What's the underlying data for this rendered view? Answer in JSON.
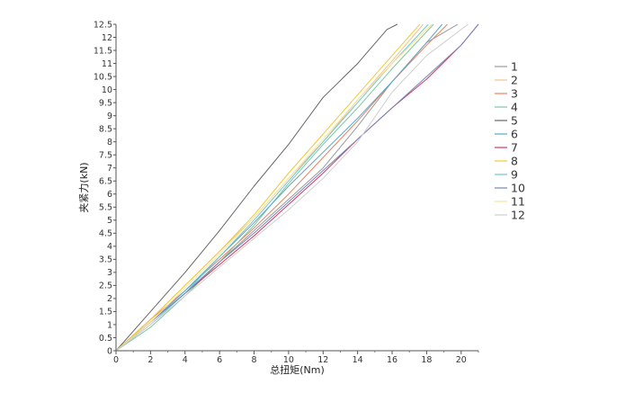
{
  "chart_data": {
    "type": "line",
    "title": "",
    "xlabel": "总扭矩(Nm)",
    "ylabel": "夹紧力(kN)",
    "xlim": [
      0,
      21
    ],
    "ylim": [
      0,
      12.5
    ],
    "x_ticks": [
      0,
      2,
      4,
      6,
      8,
      10,
      12,
      14,
      16,
      18,
      20
    ],
    "y_ticks": [
      0,
      0.5,
      1,
      1.5,
      2,
      2.5,
      3,
      3.5,
      4,
      4.5,
      5,
      5.5,
      6,
      6.5,
      7,
      7.5,
      8,
      8.5,
      9,
      9.5,
      10,
      10.5,
      11,
      11.5,
      12,
      12.5
    ],
    "x_tick_labels": [
      "0",
      "2",
      "4",
      "6",
      "8",
      "10",
      "12",
      "14",
      "16",
      "18",
      "20"
    ],
    "y_tick_labels": [
      "0",
      "0.5",
      "1",
      "1.5",
      "2",
      "2.5",
      "3",
      "3.5",
      "4",
      "4.5",
      "5",
      "5.5",
      "6",
      "6.5",
      "7",
      "7.5",
      "8",
      "8.5",
      "9",
      "9.5",
      "10",
      "10.5",
      "11",
      "11.5",
      "12",
      "12.5"
    ],
    "grid": false,
    "legend_position": "right",
    "series": [
      {
        "name": "1",
        "color": "#999999",
        "x": [
          0,
          2,
          4,
          6,
          8,
          10,
          12,
          14,
          16,
          18,
          19.8
        ],
        "y": [
          0,
          1.1,
          2.2,
          3.4,
          4.6,
          5.8,
          7.0,
          8.6,
          10.3,
          11.8,
          12.5
        ]
      },
      {
        "name": "2",
        "color": "#f5c28a",
        "x": [
          0,
          2,
          4,
          6,
          8,
          10,
          12,
          14,
          16,
          17.8
        ],
        "y": [
          0,
          1.2,
          2.5,
          3.8,
          5.1,
          6.6,
          8.0,
          9.6,
          11.1,
          12.5
        ]
      },
      {
        "name": "3",
        "color": "#ee7f5e",
        "x": [
          0,
          2,
          4,
          6,
          8,
          10,
          12,
          14,
          16,
          18,
          19.2
        ],
        "y": [
          0,
          1.2,
          2.3,
          3.5,
          4.7,
          6.0,
          7.4,
          8.8,
          10.3,
          11.7,
          12.5
        ]
      },
      {
        "name": "4",
        "color": "#80c69c",
        "x": [
          0,
          2,
          4,
          6,
          8,
          10,
          12,
          14,
          16,
          18.4
        ],
        "y": [
          0,
          0.9,
          2.1,
          3.4,
          4.8,
          6.4,
          7.9,
          9.3,
          10.8,
          12.5
        ]
      },
      {
        "name": "5",
        "color": "#666666",
        "x": [
          0,
          2,
          4,
          6,
          8,
          10,
          12,
          14,
          15.7,
          16.3
        ],
        "y": [
          0,
          1.5,
          3.0,
          4.6,
          6.3,
          7.9,
          9.7,
          11.0,
          12.3,
          12.5
        ]
      },
      {
        "name": "6",
        "color": "#5aa6c8",
        "x": [
          0,
          2,
          4,
          6,
          8,
          10,
          12,
          14,
          16,
          18,
          18.9
        ],
        "y": [
          0,
          1.1,
          2.3,
          3.6,
          4.9,
          6.3,
          7.6,
          8.9,
          10.3,
          11.8,
          12.5
        ]
      },
      {
        "name": "7",
        "color": "#d6395b",
        "x": [
          0,
          2,
          4,
          6,
          8,
          10,
          12,
          14,
          16,
          18,
          20,
          21
        ],
        "y": [
          0,
          1.1,
          2.2,
          3.3,
          4.4,
          5.6,
          6.8,
          8.1,
          9.3,
          10.4,
          11.7,
          12.5
        ]
      },
      {
        "name": "8",
        "color": "#f2c93a",
        "x": [
          0,
          2,
          4,
          6,
          8,
          10,
          12,
          14,
          16,
          17.6
        ],
        "y": [
          0,
          1.2,
          2.5,
          3.8,
          5.2,
          6.8,
          8.3,
          9.8,
          11.3,
          12.5
        ]
      },
      {
        "name": "9",
        "color": "#6cc8d8",
        "x": [
          0,
          2,
          4,
          6,
          8,
          10,
          12,
          14,
          16,
          18.1
        ],
        "y": [
          0,
          1.0,
          2.2,
          3.6,
          5.0,
          6.5,
          8.0,
          9.5,
          11.0,
          12.5
        ]
      },
      {
        "name": "10",
        "color": "#7487b8",
        "x": [
          0,
          2,
          4,
          6,
          8,
          10,
          12,
          14,
          16,
          18,
          20,
          21
        ],
        "y": [
          0,
          1.1,
          2.2,
          3.4,
          4.5,
          5.7,
          6.9,
          8.1,
          9.3,
          10.5,
          11.7,
          12.5
        ]
      },
      {
        "name": "11",
        "color": "#f7e49a",
        "x": [
          0,
          2,
          4,
          6,
          8,
          10,
          12,
          14,
          16,
          18.3
        ],
        "y": [
          0,
          1.1,
          2.4,
          3.7,
          5.1,
          6.6,
          8.1,
          9.6,
          11.0,
          12.5
        ]
      },
      {
        "name": "12",
        "color": "#cfcfcf",
        "x": [
          0,
          2,
          4,
          6,
          8,
          10,
          12,
          14,
          16,
          18,
          20.4
        ],
        "y": [
          0,
          1.0,
          2.1,
          3.2,
          4.3,
          5.4,
          6.6,
          8.0,
          9.9,
          11.3,
          12.5
        ]
      }
    ]
  }
}
